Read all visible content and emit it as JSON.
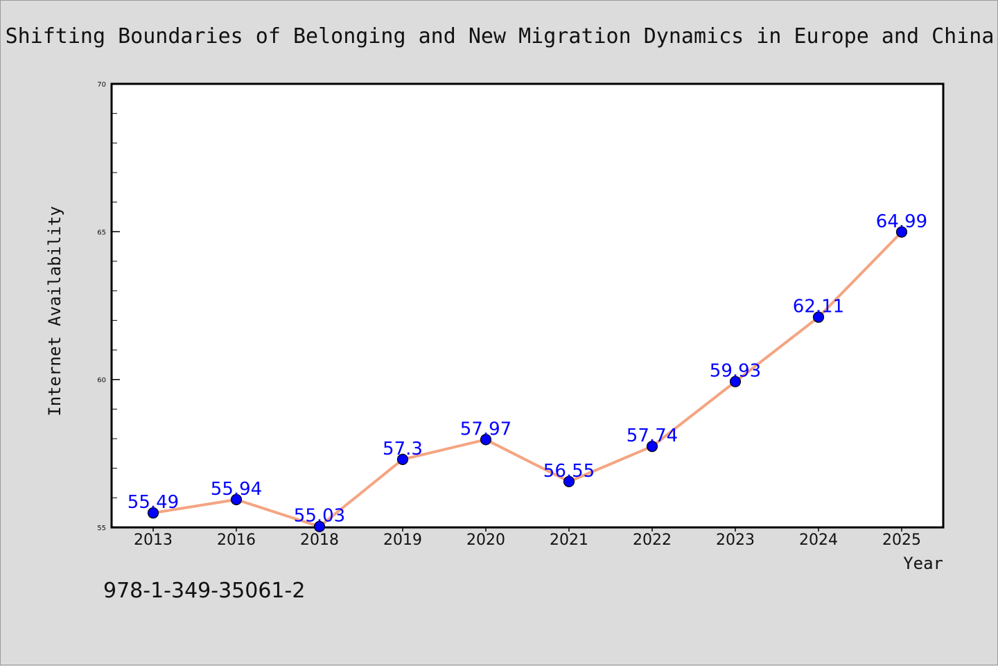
{
  "colors": {
    "background": "#dcdcdc",
    "plot_background": "#ffffff",
    "line": "#f4a582",
    "marker": "#0000ff",
    "data_label": "#0000ff",
    "text": "#111111"
  },
  "chart_data": {
    "type": "line",
    "title": "Shifting Boundaries of Belonging and New Migration Dynamics in Europe and China",
    "xlabel": "Year",
    "ylabel": "Internet Availability",
    "categories": [
      "2013",
      "2016",
      "2018",
      "2019",
      "2020",
      "2021",
      "2022",
      "2023",
      "2024",
      "2025"
    ],
    "series": [
      {
        "values": [
          55.49,
          55.94,
          55.03,
          57.3,
          57.97,
          56.55,
          57.74,
          59.93,
          62.11,
          64.99
        ],
        "data_labels": [
          "55.49",
          "55.94",
          "55.03",
          "57.3",
          "57.97",
          "56.55",
          "57.74",
          "59.93",
          "62.11",
          "64.99"
        ]
      }
    ],
    "ylim": [
      55,
      70
    ],
    "yticks": [
      "55",
      "60",
      "65",
      "70"
    ],
    "y_minor_step": 1,
    "grid": false,
    "legend": "none"
  },
  "footer": {
    "isbn": "978-1-349-35061-2"
  }
}
